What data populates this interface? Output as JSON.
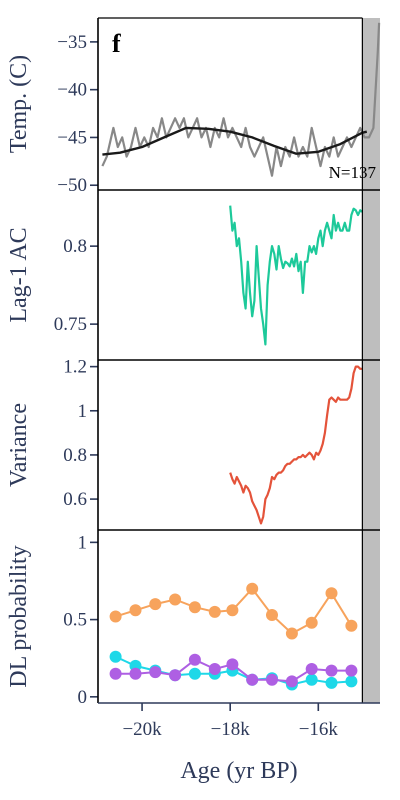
{
  "chart_data": {
    "panel_label": "f",
    "type": "line",
    "xlabel": "Age (yr BP)",
    "xlim": [
      -21000,
      -14600
    ],
    "xticks": [
      {
        "value": -20000,
        "label": "−20k"
      },
      {
        "value": -18000,
        "label": "−18k"
      },
      {
        "value": -16000,
        "label": "−16k"
      }
    ],
    "shaded_region": {
      "x": [
        -15000,
        -14600
      ],
      "color": "#bebebe"
    },
    "colors": {
      "axis": "#2e3a5a",
      "temp": "#888888",
      "smooth": "#1a1a1a",
      "ac": "#1dc99a",
      "variance": "#e4533a",
      "dl_a": "#f7a35c",
      "dl_b": "#ae5fe3",
      "dl_c": "#1ed8e8"
    },
    "panels": [
      {
        "id": "temp",
        "ylabel": "Temp. (C)",
        "ylim": [
          -50.5,
          -32.5
        ],
        "yticks": [
          {
            "value": -35,
            "label": "−35"
          },
          {
            "value": -40,
            "label": "−40"
          },
          {
            "value": -45,
            "label": "−45"
          },
          {
            "value": -50,
            "label": "−50"
          }
        ],
        "annotation": "N=137",
        "series": [
          {
            "kind": "line",
            "color": "#888888",
            "width": 2.2,
            "x": [
              -20900,
              -20800,
              -20700,
              -20650,
              -20550,
              -20450,
              -20350,
              -20250,
              -20150,
              -20050,
              -19950,
              -19850,
              -19750,
              -19650,
              -19550,
              -19450,
              -19350,
              -19250,
              -19150,
              -19050,
              -18950,
              -18850,
              -18750,
              -18650,
              -18550,
              -18450,
              -18350,
              -18250,
              -18150,
              -18050,
              -17950,
              -17850,
              -17750,
              -17650,
              -17550,
              -17450,
              -17350,
              -17250,
              -17150,
              -17050,
              -16950,
              -16850,
              -16750,
              -16650,
              -16550,
              -16450,
              -16350,
              -16250,
              -16150,
              -16050,
              -15950,
              -15850,
              -15750,
              -15650,
              -15550,
              -15450,
              -15350,
              -15250,
              -15150,
              -15050,
              -14950,
              -14850,
              -14750,
              -14700,
              -14650,
              -14620
            ],
            "y": [
              -48,
              -47,
              -45,
              -44,
              -46,
              -45,
              -47,
              -46,
              -44,
              -46,
              -45,
              -46,
              -44,
              -45,
              -43,
              -45,
              -44,
              -43,
              -44,
              -43,
              -45,
              -44,
              -43,
              -45,
              -44,
              -46,
              -44,
              -45,
              -43,
              -45,
              -44,
              -45,
              -46,
              -44,
              -46,
              -47,
              -46,
              -45,
              -47,
              -49,
              -46,
              -48,
              -46,
              -47,
              -45,
              -47,
              -46,
              -47,
              -44,
              -46,
              -48,
              -46,
              -47,
              -45,
              -47,
              -46,
              -45,
              -46,
              -45,
              -44,
              -45,
              -45,
              -44,
              -40,
              -36,
              -33
            ]
          },
          {
            "kind": "line",
            "color": "#1a1a1a",
            "width": 2.4,
            "x": [
              -20900,
              -20500,
              -20000,
              -19500,
              -19000,
              -18500,
              -18000,
              -17500,
              -17000,
              -16500,
              -16000,
              -15500,
              -15000,
              -14900
            ],
            "y": [
              -46.8,
              -46.6,
              -46.0,
              -45.0,
              -44.0,
              -44.1,
              -44.4,
              -45.0,
              -45.9,
              -46.7,
              -46.5,
              -45.7,
              -44.5,
              -44.4
            ]
          }
        ]
      },
      {
        "id": "ac",
        "ylabel": "Lag-1 AC",
        "ylim": [
          0.727,
          0.836
        ],
        "yticks": [
          {
            "value": 0.75,
            "label": "0.75"
          },
          {
            "value": 0.8,
            "label": "0.8"
          }
        ],
        "series": [
          {
            "kind": "line",
            "color": "#1dc99a",
            "width": 2.2,
            "x": [
              -18000,
              -17950,
              -17900,
              -17850,
              -17800,
              -17750,
              -17700,
              -17650,
              -17600,
              -17550,
              -17500,
              -17450,
              -17400,
              -17350,
              -17300,
              -17250,
              -17200,
              -17150,
              -17100,
              -17050,
              -17000,
              -16950,
              -16900,
              -16850,
              -16800,
              -16750,
              -16700,
              -16650,
              -16600,
              -16550,
              -16500,
              -16450,
              -16400,
              -16350,
              -16300,
              -16250,
              -16200,
              -16150,
              -16100,
              -16050,
              -16000,
              -15950,
              -15900,
              -15850,
              -15800,
              -15750,
              -15700,
              -15650,
              -15600,
              -15550,
              -15500,
              -15450,
              -15400,
              -15350,
              -15300,
              -15250,
              -15200,
              -15150,
              -15100,
              -15050,
              -15000
            ],
            "y": [
              0.826,
              0.81,
              0.815,
              0.8,
              0.805,
              0.79,
              0.77,
              0.76,
              0.79,
              0.77,
              0.755,
              0.765,
              0.8,
              0.78,
              0.76,
              0.75,
              0.737,
              0.775,
              0.79,
              0.8,
              0.795,
              0.785,
              0.8,
              0.792,
              0.786,
              0.79,
              0.789,
              0.787,
              0.792,
              0.787,
              0.795,
              0.784,
              0.79,
              0.77,
              0.79,
              0.79,
              0.8,
              0.796,
              0.8,
              0.795,
              0.805,
              0.81,
              0.8,
              0.81,
              0.815,
              0.81,
              0.805,
              0.82,
              0.81,
              0.815,
              0.81,
              0.81,
              0.815,
              0.81,
              0.81,
              0.82,
              0.824,
              0.823,
              0.82,
              0.823,
              0.822
            ]
          }
        ]
      },
      {
        "id": "variance",
        "ylabel": "Variance",
        "ylim": [
          0.46,
          1.23
        ],
        "yticks": [
          {
            "value": 0.6,
            "label": "0.6"
          },
          {
            "value": 0.8,
            "label": "0.8"
          },
          {
            "value": 1,
            "label": "1"
          },
          {
            "value": 1.2,
            "label": "1.2"
          }
        ],
        "series": [
          {
            "kind": "line",
            "color": "#e4533a",
            "width": 2.2,
            "x": [
              -18000,
              -17950,
              -17900,
              -17850,
              -17800,
              -17750,
              -17700,
              -17650,
              -17600,
              -17550,
              -17500,
              -17450,
              -17400,
              -17350,
              -17300,
              -17250,
              -17200,
              -17150,
              -17100,
              -17050,
              -17000,
              -16950,
              -16900,
              -16850,
              -16800,
              -16750,
              -16700,
              -16650,
              -16600,
              -16550,
              -16500,
              -16450,
              -16400,
              -16350,
              -16300,
              -16250,
              -16200,
              -16150,
              -16100,
              -16050,
              -16000,
              -15950,
              -15900,
              -15850,
              -15800,
              -15750,
              -15700,
              -15650,
              -15600,
              -15550,
              -15500,
              -15450,
              -15400,
              -15350,
              -15300,
              -15250,
              -15200,
              -15150,
              -15100,
              -15050,
              -15000
            ],
            "y": [
              0.72,
              0.69,
              0.67,
              0.7,
              0.68,
              0.66,
              0.63,
              0.66,
              0.65,
              0.63,
              0.59,
              0.57,
              0.55,
              0.52,
              0.49,
              0.52,
              0.6,
              0.62,
              0.65,
              0.7,
              0.69,
              0.71,
              0.72,
              0.72,
              0.73,
              0.75,
              0.76,
              0.76,
              0.77,
              0.78,
              0.78,
              0.79,
              0.79,
              0.8,
              0.79,
              0.8,
              0.81,
              0.8,
              0.78,
              0.81,
              0.8,
              0.82,
              0.85,
              0.9,
              0.98,
              1.05,
              1.06,
              1.05,
              1.04,
              1.06,
              1.05,
              1.05,
              1.05,
              1.05,
              1.06,
              1.1,
              1.17,
              1.2,
              1.2,
              1.19,
              1.19
            ]
          }
        ]
      },
      {
        "id": "dl",
        "ylabel": "DL probability",
        "ylim": [
          -0.04,
          1.08
        ],
        "yticks": [
          {
            "value": 0,
            "label": "0"
          },
          {
            "value": 0.5,
            "label": "0.5"
          },
          {
            "value": 1,
            "label": "1"
          }
        ],
        "series": [
          {
            "kind": "markers",
            "color": "#1ed8e8",
            "x": [
              -20600,
              -20150,
              -19700,
              -19250,
              -18800,
              -18350,
              -17950,
              -17500,
              -17050,
              -16600,
              -16150,
              -15700,
              -15250
            ],
            "y": [
              0.26,
              0.2,
              0.17,
              0.14,
              0.15,
              0.15,
              0.17,
              0.11,
              0.12,
              0.08,
              0.11,
              0.09,
              0.1
            ]
          },
          {
            "kind": "markers",
            "color": "#ae5fe3",
            "x": [
              -20600,
              -20150,
              -19700,
              -19250,
              -18800,
              -18350,
              -17950,
              -17500,
              -17050,
              -16600,
              -16150,
              -15700,
              -15250
            ],
            "y": [
              0.15,
              0.15,
              0.16,
              0.14,
              0.24,
              0.18,
              0.21,
              0.11,
              0.11,
              0.1,
              0.18,
              0.17,
              0.17
            ]
          },
          {
            "kind": "markers",
            "color": "#f7a35c",
            "x": [
              -20600,
              -20150,
              -19700,
              -19250,
              -18800,
              -18350,
              -17950,
              -17500,
              -17050,
              -16600,
              -16150,
              -15700,
              -15250
            ],
            "y": [
              0.52,
              0.56,
              0.6,
              0.63,
              0.58,
              0.55,
              0.56,
              0.7,
              0.53,
              0.41,
              0.48,
              0.67,
              0.46
            ]
          }
        ]
      }
    ]
  }
}
